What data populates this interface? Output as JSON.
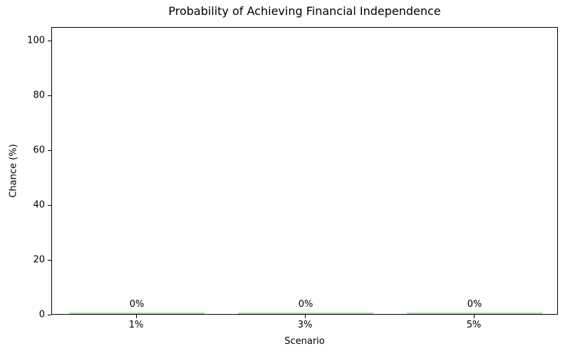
{
  "chart_data": {
    "type": "bar",
    "title": "Probability of Achieving Financial Independence",
    "xlabel": "Scenario",
    "ylabel": "Chance (%)",
    "categories": [
      "1%",
      "3%",
      "5%"
    ],
    "values": [
      0,
      0,
      0
    ],
    "bar_labels": [
      "0%",
      "0%",
      "0%"
    ],
    "yticks": [
      0,
      20,
      40,
      60,
      80,
      100
    ],
    "ylim": [
      0,
      105
    ],
    "bar_color": "#90EE90",
    "grid": false,
    "legend_position": "none",
    "background_color": "#ffffff",
    "text_color": "#000000"
  }
}
